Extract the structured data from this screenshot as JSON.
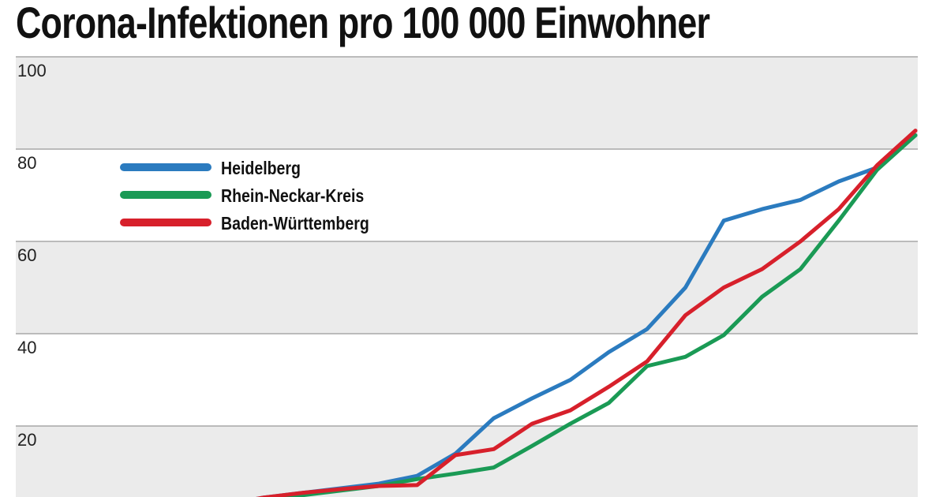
{
  "chart_data": {
    "type": "line",
    "title": "Corona-Infektionen pro 100 000 Einwohner",
    "xlabel": "",
    "ylabel": "",
    "ylim": [
      0,
      100
    ],
    "yticks": [
      "20",
      "40",
      "60",
      "80",
      "100"
    ],
    "grid": true,
    "legend_position": "top-left",
    "x": [
      1,
      2,
      3,
      4,
      5,
      6,
      7,
      8,
      9,
      10,
      11,
      12,
      13,
      14,
      15,
      16,
      17,
      18,
      19,
      20,
      21,
      22
    ],
    "series": [
      {
        "name": "Heidelberg",
        "color": "#2b7bbf",
        "values": [
          1,
          1.5,
          2,
          3,
          4.5,
          5.5,
          6.5,
          7.5,
          9.2,
          14,
          21.7,
          26,
          30,
          36,
          41,
          50,
          64.5,
          67,
          69,
          73,
          76,
          83
        ]
      },
      {
        "name": "Rhein-Neckar-Kreis",
        "color": "#1a9a55",
        "values": [
          1,
          1.5,
          2,
          3,
          4,
          5,
          6,
          7,
          8.5,
          9.7,
          11,
          15.7,
          20.5,
          25,
          33,
          35,
          39.7,
          48,
          54,
          64.5,
          75.5,
          83
        ]
      },
      {
        "name": "Baden-Württemberg",
        "color": "#d7202b",
        "values": [
          1,
          1.5,
          2,
          3,
          4.5,
          5.5,
          6.3,
          7,
          7.2,
          13.7,
          15,
          20.5,
          23.4,
          28.5,
          34,
          44,
          50,
          54,
          60,
          67,
          76.5,
          84
        ]
      }
    ]
  }
}
